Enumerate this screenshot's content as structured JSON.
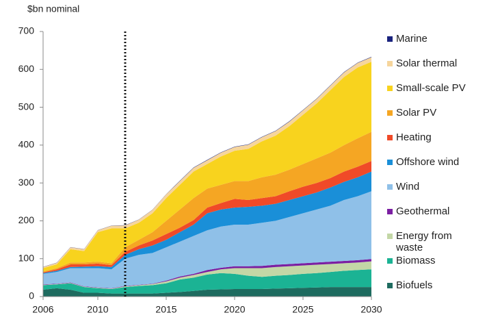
{
  "chart_data": {
    "type": "stacked_area",
    "y_axis_label": "$bn nominal",
    "x": [
      2006,
      2007,
      2008,
      2009,
      2010,
      2011,
      2012,
      2013,
      2014,
      2015,
      2016,
      2017,
      2018,
      2019,
      2020,
      2021,
      2022,
      2023,
      2024,
      2025,
      2026,
      2027,
      2028,
      2029,
      2030
    ],
    "xlim": [
      2006,
      2030
    ],
    "xticks": [
      2006,
      2010,
      2015,
      2020,
      2025,
      2030
    ],
    "ylim": [
      0,
      700
    ],
    "yticks": [
      0,
      100,
      200,
      300,
      400,
      500,
      600,
      700
    ],
    "vline_x": 2012,
    "series": [
      {
        "name": "Biofuels",
        "color": "#1e6b5f",
        "values": [
          18,
          22,
          18,
          10,
          10,
          8,
          8,
          8,
          8,
          10,
          12,
          15,
          18,
          19,
          20,
          20,
          20,
          21,
          22,
          23,
          24,
          25,
          25,
          25,
          25
        ]
      },
      {
        "name": "Biomass",
        "color": "#1bb394",
        "values": [
          12,
          10,
          17,
          15,
          12,
          12,
          17,
          20,
          22,
          25,
          33,
          35,
          40,
          43,
          40,
          35,
          32,
          34,
          35,
          37,
          38,
          40,
          43,
          45,
          47
        ]
      },
      {
        "name": "Energy from waste",
        "color": "#c3d7a6",
        "values": [
          1,
          1,
          1,
          1,
          1,
          1,
          2,
          2,
          3,
          5,
          5,
          7,
          7,
          10,
          15,
          20,
          23,
          23,
          23,
          22,
          22,
          21,
          20,
          20,
          21
        ]
      },
      {
        "name": "Geothermal",
        "color": "#7b1fa2",
        "values": [
          1,
          1,
          1,
          1,
          1,
          1,
          1,
          1,
          1,
          2,
          3,
          3,
          5,
          4,
          5,
          5,
          6,
          6,
          6,
          6,
          6,
          6,
          6,
          6,
          6
        ]
      },
      {
        "name": "Wind",
        "color": "#8fc0e8",
        "values": [
          28,
          31,
          38,
          48,
          51,
          50,
          72,
          79,
          81,
          88,
          92,
          100,
          105,
          109,
          110,
          110,
          114,
          116,
          124,
          132,
          140,
          148,
          161,
          169,
          179
        ]
      },
      {
        "name": "Offshore wind",
        "color": "#1a8fd8",
        "values": [
          2,
          3,
          3,
          4,
          5,
          6,
          10,
          15,
          20,
          20,
          25,
          30,
          45,
          45,
          45,
          47,
          45,
          45,
          45,
          45,
          45,
          48,
          48,
          50,
          52
        ]
      },
      {
        "name": "Heating",
        "color": "#f04a28",
        "values": [
          2,
          4,
          7,
          6,
          7,
          5,
          8,
          10,
          13,
          15,
          12,
          12,
          15,
          17,
          23,
          18,
          20,
          20,
          23,
          25,
          25,
          25,
          27,
          28,
          28
        ]
      },
      {
        "name": "Solar PV",
        "color": "#f5a623",
        "values": [
          2,
          3,
          5,
          5,
          5,
          5,
          12,
          15,
          22,
          35,
          48,
          58,
          50,
          48,
          47,
          50,
          55,
          57,
          57,
          60,
          65,
          67,
          70,
          75,
          77
        ]
      },
      {
        "name": "Small-scale PV",
        "color": "#f8d31e",
        "values": [
          9,
          10,
          35,
          30,
          78,
          92,
          50,
          45,
          50,
          60,
          65,
          70,
          65,
          75,
          80,
          85,
          95,
          103,
          115,
          130,
          145,
          165,
          180,
          187,
          185
        ]
      },
      {
        "name": "Solar thermal",
        "color": "#f6d59c",
        "values": [
          3,
          4,
          5,
          5,
          5,
          7,
          8,
          8,
          9,
          10,
          10,
          10,
          10,
          10,
          10,
          11,
          11,
          12,
          12,
          12,
          12,
          12,
          12,
          12,
          12
        ]
      },
      {
        "name": "Marine",
        "color": "#1a237e",
        "values": [
          0.5,
          0.5,
          0.5,
          0.5,
          0.5,
          0.5,
          0.5,
          0.5,
          0.5,
          0.5,
          1,
          1,
          1,
          1,
          1,
          1,
          1,
          1,
          1,
          1,
          1,
          1,
          1,
          1,
          1
        ]
      }
    ]
  }
}
